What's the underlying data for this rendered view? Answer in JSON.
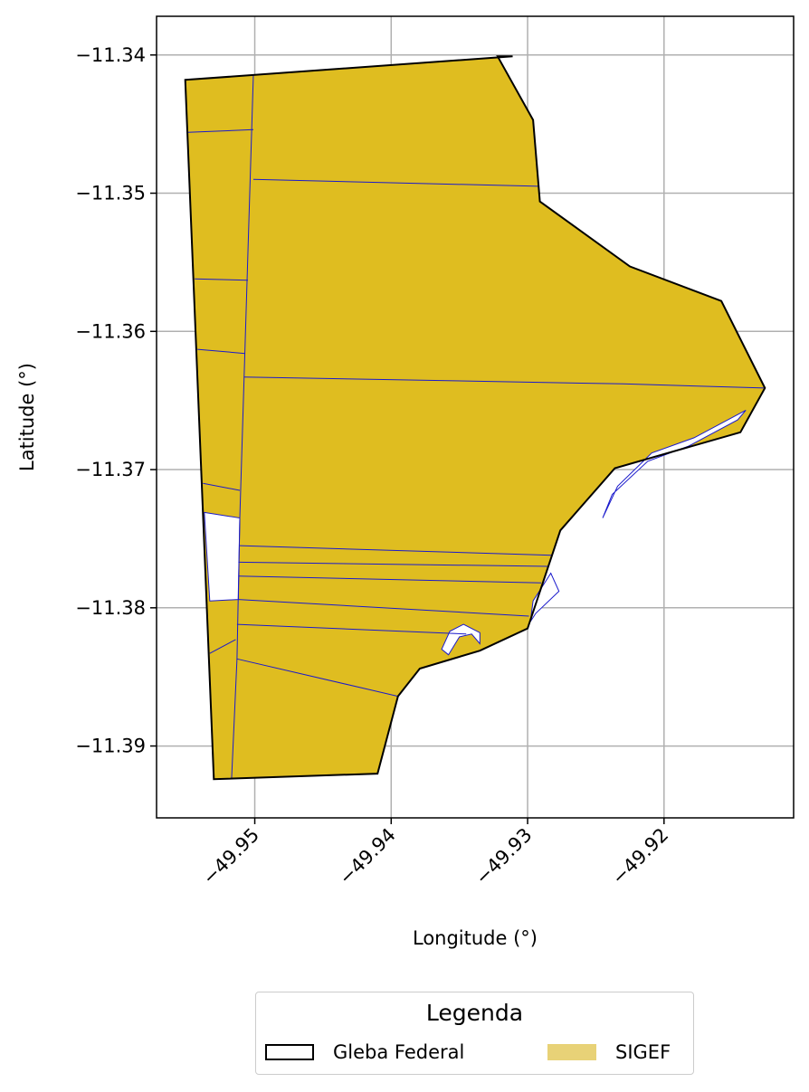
{
  "chart_data": {
    "type": "map",
    "title": "",
    "xlabel": "Longitude (°)",
    "ylabel": "Latitude (°)",
    "xlim": [
      -49.9572,
      -49.9105
    ],
    "ylim": [
      -11.3952,
      -11.3372
    ],
    "x_ticks": [
      -49.95,
      -49.94,
      -49.93,
      -49.92
    ],
    "y_ticks": [
      -11.34,
      -11.35,
      -11.36,
      -11.37,
      -11.38,
      -11.39
    ],
    "x_tick_labels": [
      "−49.95",
      "−49.94",
      "−49.93",
      "−49.92"
    ],
    "y_tick_labels": [
      "−11.34",
      "−11.35",
      "−11.36",
      "−11.37",
      "−11.38",
      "−11.39"
    ],
    "grid": true,
    "layers": [
      {
        "name": "Gleba Federal",
        "style": {
          "fill": "none",
          "edge": "#000000"
        },
        "polygon": [
          [
            -49.9551,
            -11.3418
          ],
          [
            -49.9311,
            -11.3401
          ],
          [
            -49.9322,
            -11.3401
          ],
          [
            -49.9296,
            -11.3447
          ],
          [
            -49.9291,
            -11.3506
          ],
          [
            -49.9225,
            -11.3553
          ],
          [
            -49.9158,
            -11.3578
          ],
          [
            -49.9126,
            -11.3641
          ],
          [
            -49.9144,
            -11.3673
          ],
          [
            -49.9236,
            -11.3699
          ],
          [
            -49.9276,
            -11.3744
          ],
          [
            -49.93,
            -11.3815
          ],
          [
            -49.9335,
            -11.3831
          ],
          [
            -49.9379,
            -11.3844
          ],
          [
            -49.9395,
            -11.3864
          ],
          [
            -49.941,
            -11.392
          ],
          [
            -49.953,
            -11.3924
          ]
        ]
      },
      {
        "name": "SIGEF",
        "style": {
          "fill": "#dfbd20",
          "edge": "#1a1acc"
        },
        "parcel_lines": [
          [
            [
              -49.9549,
              -11.3456
            ],
            [
              -49.9501,
              -11.3454
            ]
          ],
          [
            [
              -49.9501,
              -11.349
            ],
            [
              -49.9292,
              -11.3495
            ]
          ],
          [
            [
              -49.9544,
              -11.3562
            ],
            [
              -49.9505,
              -11.3563
            ]
          ],
          [
            [
              -49.9542,
              -11.3613
            ],
            [
              -49.9507,
              -11.3616
            ]
          ],
          [
            [
              -49.9508,
              -11.3633
            ],
            [
              -49.923,
              -11.3638
            ],
            [
              -49.9126,
              -11.3641
            ]
          ],
          [
            [
              -49.9538,
              -11.371
            ],
            [
              -49.9511,
              -11.3715
            ]
          ],
          [
            [
              -49.9511,
              -11.3755
            ],
            [
              -49.9282,
              -11.3762
            ]
          ],
          [
            [
              -49.9512,
              -11.3767
            ],
            [
              -49.9285,
              -11.377
            ]
          ],
          [
            [
              -49.9512,
              -11.3777
            ],
            [
              -49.929,
              -11.3782
            ]
          ],
          [
            [
              -49.9512,
              -11.3794
            ],
            [
              -49.9299,
              -11.3806
            ]
          ],
          [
            [
              -49.9513,
              -11.3812
            ],
            [
              -49.9345,
              -11.3819
            ]
          ],
          [
            [
              -49.9513,
              -11.3837
            ],
            [
              -49.9395,
              -11.3864
            ]
          ],
          [
            [
              -49.9533,
              -11.3833
            ],
            [
              -49.9514,
              -11.3823
            ]
          ]
        ],
        "gaps": [
          {
            "name": "west-gap",
            "polygon": [
              [
                -49.9537,
                -11.3731
              ],
              [
                -49.9511,
                -11.3735
              ],
              [
                -49.9512,
                -11.3794
              ],
              [
                -49.9533,
                -11.3795
              ]
            ]
          }
        ]
      }
    ],
    "legend": {
      "title": "Legenda",
      "placement": "bottom-center",
      "entries": [
        {
          "label": "Gleba Federal",
          "style": "outline",
          "color": "#000000"
        },
        {
          "label": "SIGEF",
          "style": "fill",
          "color": "#e8d277"
        }
      ]
    }
  }
}
